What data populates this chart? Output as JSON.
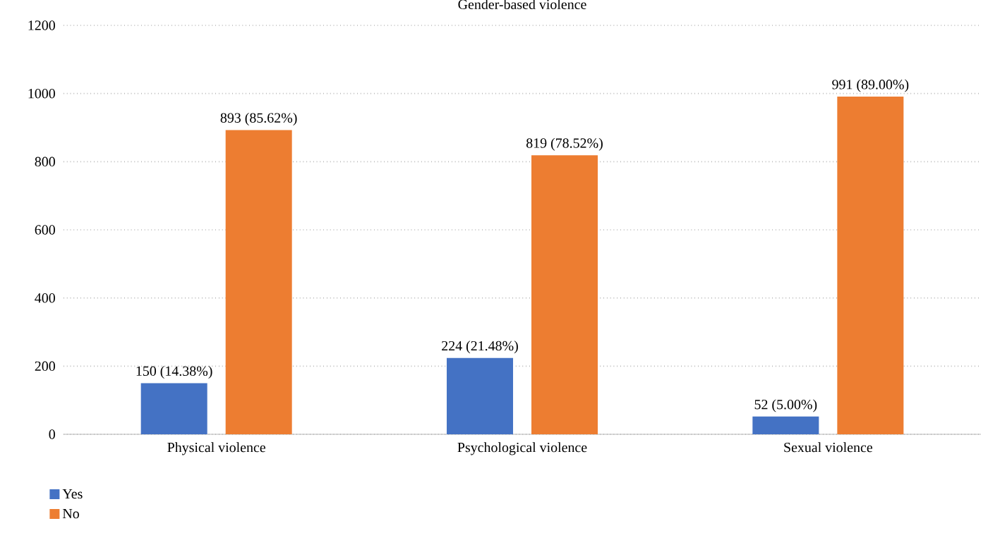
{
  "chart_data": {
    "type": "bar",
    "title": "Gender-based violence",
    "categories": [
      "Physical violence",
      "Psychological violence",
      "Sexual violence"
    ],
    "series": [
      {
        "name": "Yes",
        "color": "#4472c4",
        "values": [
          150,
          224,
          52
        ],
        "value_labels": [
          "150 (14.38%)",
          "224 (21.48%)",
          "52 (5.00%)"
        ]
      },
      {
        "name": "No",
        "color": "#ed7d31",
        "values": [
          893,
          819,
          991
        ],
        "value_labels": [
          "893 (85.62%)",
          "819 (78.52%)",
          "991 (89.00%)"
        ]
      }
    ],
    "ylim": [
      0,
      1200
    ],
    "yticks": [
      0,
      200,
      400,
      600,
      800,
      1000,
      1200
    ],
    "grid": "y",
    "legend": "bottom left"
  }
}
